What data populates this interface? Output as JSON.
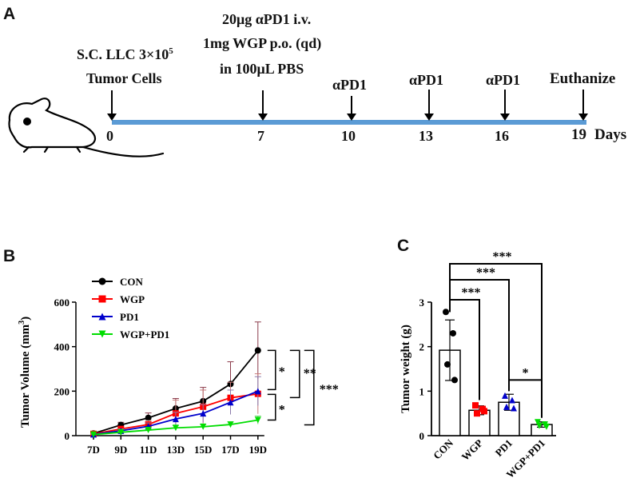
{
  "panels": {
    "a": "A",
    "b": "B",
    "c": "C"
  },
  "timeline": {
    "start_text": [
      "S.C. LLC 3×10",
      "5",
      "Tumor Cells"
    ],
    "treatment_text": [
      "20μg αPD1 i.v.",
      "1mg WGP p.o. (qd)",
      "in 100μL PBS"
    ],
    "day_labels": [
      "0",
      "7",
      "10",
      "13",
      "16",
      "19"
    ],
    "days_suffix": "Days",
    "event_labels": [
      "αPD1",
      "αPD1",
      "αPD1",
      "Euthanize"
    ],
    "colors": {
      "line": "#5b9bd5"
    }
  },
  "chart_data": [
    {
      "type": "line",
      "title": "",
      "xlabel": "",
      "ylabel": "Tumor Volume (mm³)",
      "ylabel_main": "Tumor Volume (mm",
      "ylabel_sup": "3",
      "ylabel_close": ")",
      "categories": [
        "7D",
        "9D",
        "11D",
        "13D",
        "15D",
        "17D",
        "19D"
      ],
      "ylim": [
        0,
        600
      ],
      "yticks": [
        "0",
        "200",
        "400",
        "600"
      ],
      "series": [
        {
          "name": "CON",
          "color": "#000000",
          "marker": "circle",
          "values": [
            10,
            48,
            80,
            122,
            155,
            232,
            383
          ],
          "errors": [
            3,
            12,
            22,
            45,
            62,
            100,
            128
          ]
        },
        {
          "name": "WGP",
          "color": "#ff0000",
          "marker": "square",
          "values": [
            8,
            30,
            50,
            100,
            130,
            170,
            188
          ],
          "errors": [
            3,
            10,
            18,
            60,
            75,
            70,
            90
          ]
        },
        {
          "name": "PD1",
          "color": "#0000cc",
          "marker": "triangle",
          "values": [
            6,
            22,
            42,
            75,
            100,
            150,
            200
          ],
          "errors": [
            2,
            8,
            15,
            30,
            40,
            55,
            65
          ]
        },
        {
          "name": "WGP+PD1",
          "color": "#00dd00",
          "marker": "triangle-down",
          "values": [
            5,
            15,
            25,
            35,
            40,
            50,
            70
          ],
          "errors": [
            2,
            5,
            8,
            10,
            10,
            12,
            18
          ]
        }
      ],
      "significance": [
        {
          "label": "*"
        },
        {
          "label": "*"
        },
        {
          "label": "**"
        },
        {
          "label": "***"
        }
      ]
    },
    {
      "type": "bar",
      "title": "",
      "xlabel": "",
      "ylabel": "Tumor weight (g)",
      "categories": [
        "CON",
        "WGP",
        "PD1",
        "WGP+PD1"
      ],
      "values": [
        1.92,
        0.57,
        0.75,
        0.25
      ],
      "errors": [
        0.68,
        0.1,
        0.18,
        0.06
      ],
      "colors": [
        "#000000",
        "#ff0000",
        "#0000cc",
        "#00dd00"
      ],
      "ylim": [
        0,
        3
      ],
      "yticks": [
        "0",
        "1",
        "2",
        "3"
      ],
      "points": [
        [
          2.78,
          2.3,
          1.6,
          1.25
        ],
        [
          0.68,
          0.6,
          0.5,
          0.55
        ],
        [
          0.9,
          0.8,
          0.65,
          0.62
        ],
        [
          0.3,
          0.25,
          0.22,
          0.2
        ]
      ],
      "significance": [
        {
          "label": "***"
        },
        {
          "label": "***"
        },
        {
          "label": "***"
        },
        {
          "label": "*"
        }
      ]
    }
  ]
}
